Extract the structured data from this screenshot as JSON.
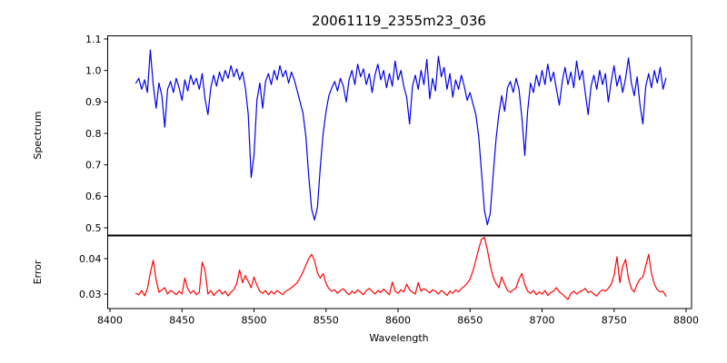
{
  "figure": {
    "background": "#ffffff",
    "spine_color": "#000000"
  },
  "chart_data": [
    {
      "type": "line",
      "title": "20061119_2355m23_036",
      "ylabel": "Spectrum",
      "xlabel": "",
      "grid": false,
      "legend": "none",
      "xlim": [
        8398.4,
        8803.8
      ],
      "ylim": [
        0.477,
        1.11
      ],
      "yticks": [
        0.5,
        0.6,
        0.7,
        0.8,
        0.9,
        1.0,
        1.1
      ],
      "ytick_labels": [
        "0.5",
        "0.6",
        "0.7",
        "0.8",
        "0.9",
        "1.0",
        "1.1"
      ],
      "series": [
        {
          "name": "spectrum",
          "color": "#0000ee",
          "x": [
            8418,
            8420,
            8422,
            8424,
            8426,
            8428,
            8430,
            8432,
            8434,
            8436,
            8438,
            8440,
            8442,
            8444,
            8446,
            8448,
            8450,
            8452,
            8454,
            8456,
            8458,
            8460,
            8462,
            8464,
            8466,
            8468,
            8470,
            8472,
            8474,
            8476,
            8478,
            8480,
            8482,
            8484,
            8486,
            8488,
            8490,
            8492,
            8494,
            8496,
            8498,
            8500,
            8502,
            8504,
            8506,
            8508,
            8510,
            8512,
            8514,
            8516,
            8518,
            8520,
            8522,
            8524,
            8526,
            8528,
            8530,
            8532,
            8534,
            8536,
            8538,
            8540,
            8542,
            8544,
            8546,
            8548,
            8550,
            8552,
            8554,
            8556,
            8558,
            8560,
            8562,
            8564,
            8566,
            8568,
            8570,
            8572,
            8574,
            8576,
            8578,
            8580,
            8582,
            8584,
            8586,
            8588,
            8590,
            8592,
            8594,
            8596,
            8598,
            8600,
            8602,
            8604,
            8606,
            8608,
            8610,
            8612,
            8614,
            8616,
            8618,
            8620,
            8622,
            8624,
            8626,
            8628,
            8630,
            8632,
            8634,
            8636,
            8638,
            8640,
            8642,
            8644,
            8646,
            8648,
            8650,
            8652,
            8654,
            8656,
            8658,
            8660,
            8662,
            8664,
            8666,
            8668,
            8670,
            8672,
            8674,
            8676,
            8678,
            8680,
            8682,
            8684,
            8686,
            8688,
            8690,
            8692,
            8694,
            8696,
            8698,
            8700,
            8702,
            8704,
            8706,
            8708,
            8710,
            8712,
            8714,
            8716,
            8718,
            8720,
            8722,
            8724,
            8726,
            8728,
            8730,
            8732,
            8734,
            8736,
            8738,
            8740,
            8742,
            8744,
            8746,
            8748,
            8750,
            8752,
            8754,
            8756,
            8758,
            8760,
            8762,
            8764,
            8766,
            8768,
            8770,
            8772,
            8774,
            8776,
            8778,
            8780,
            8782,
            8784,
            8786
          ],
          "y": [
            0.96,
            0.975,
            0.94,
            0.97,
            0.93,
            1.065,
            0.955,
            0.88,
            0.96,
            0.92,
            0.82,
            0.94,
            0.965,
            0.93,
            0.975,
            0.945,
            0.905,
            0.97,
            0.935,
            0.985,
            0.955,
            0.975,
            0.94,
            0.99,
            0.91,
            0.86,
            0.945,
            0.985,
            0.95,
            0.995,
            0.965,
            1.0,
            0.975,
            1.015,
            0.98,
            1.005,
            0.97,
            0.995,
            0.945,
            0.86,
            0.66,
            0.73,
            0.905,
            0.96,
            0.88,
            0.965,
            0.99,
            0.955,
            1.0,
            0.97,
            1.015,
            0.98,
            1.0,
            0.96,
            0.995,
            0.97,
            0.935,
            0.9,
            0.865,
            0.79,
            0.665,
            0.56,
            0.525,
            0.565,
            0.69,
            0.8,
            0.87,
            0.92,
            0.945,
            0.965,
            0.935,
            0.975,
            0.95,
            0.9,
            0.97,
            1.0,
            0.955,
            1.02,
            0.98,
            1.005,
            0.955,
            0.99,
            0.93,
            0.985,
            1.02,
            0.97,
            1.0,
            0.945,
            0.99,
            0.95,
            1.03,
            0.97,
            1.0,
            0.95,
            0.915,
            0.83,
            0.95,
            0.985,
            0.94,
            1.0,
            0.955,
            1.035,
            0.91,
            0.975,
            0.935,
            1.045,
            0.98,
            1.01,
            0.94,
            0.99,
            0.915,
            0.97,
            0.94,
            0.985,
            0.95,
            0.905,
            0.93,
            0.895,
            0.86,
            0.79,
            0.675,
            0.555,
            0.51,
            0.545,
            0.665,
            0.78,
            0.86,
            0.92,
            0.87,
            0.945,
            0.965,
            0.93,
            0.975,
            0.94,
            0.85,
            0.73,
            0.87,
            0.96,
            0.93,
            0.985,
            0.95,
            1.0,
            0.955,
            1.02,
            0.965,
            0.995,
            0.94,
            0.89,
            0.965,
            1.01,
            0.955,
            0.995,
            0.945,
            1.03,
            0.97,
            1.0,
            0.93,
            0.86,
            0.95,
            0.985,
            0.94,
            1.0,
            0.955,
            0.99,
            0.9,
            0.965,
            1.015,
            0.95,
            0.985,
            0.93,
            0.975,
            1.04,
            0.96,
            0.92,
            0.98,
            0.89,
            0.83,
            0.95,
            0.99,
            0.945,
            1.0,
            0.96,
            1.01,
            0.94,
            0.975
          ]
        }
      ]
    },
    {
      "type": "line",
      "title": "",
      "ylabel": "Error",
      "xlabel": "Wavelength",
      "grid": false,
      "legend": "none",
      "xlim": [
        8398.4,
        8803.8
      ],
      "ylim": [
        0.0259,
        0.0464
      ],
      "yticks": [
        0.03,
        0.04
      ],
      "ytick_labels": [
        "0.03",
        "0.04"
      ],
      "xticks": [
        8400,
        8450,
        8500,
        8550,
        8600,
        8650,
        8700,
        8750,
        8800
      ],
      "xtick_labels": [
        "8400",
        "8450",
        "8500",
        "8550",
        "8600",
        "8650",
        "8700",
        "8750",
        "8800"
      ],
      "series": [
        {
          "name": "error",
          "color": "#ff0000",
          "x": [
            8418,
            8420,
            8422,
            8424,
            8426,
            8428,
            8430,
            8432,
            8434,
            8436,
            8438,
            8440,
            8442,
            8444,
            8446,
            8448,
            8450,
            8452,
            8454,
            8456,
            8458,
            8460,
            8462,
            8464,
            8466,
            8468,
            8470,
            8472,
            8474,
            8476,
            8478,
            8480,
            8482,
            8484,
            8486,
            8488,
            8490,
            8492,
            8494,
            8496,
            8498,
            8500,
            8502,
            8504,
            8506,
            8508,
            8510,
            8512,
            8514,
            8516,
            8518,
            8520,
            8522,
            8524,
            8526,
            8528,
            8530,
            8532,
            8534,
            8536,
            8538,
            8540,
            8542,
            8544,
            8546,
            8548,
            8550,
            8552,
            8554,
            8556,
            8558,
            8560,
            8562,
            8564,
            8566,
            8568,
            8570,
            8572,
            8574,
            8576,
            8578,
            8580,
            8582,
            8584,
            8586,
            8588,
            8590,
            8592,
            8594,
            8596,
            8598,
            8600,
            8602,
            8604,
            8606,
            8608,
            8610,
            8612,
            8614,
            8616,
            8618,
            8620,
            8622,
            8624,
            8626,
            8628,
            8630,
            8632,
            8634,
            8636,
            8638,
            8640,
            8642,
            8644,
            8646,
            8648,
            8650,
            8652,
            8654,
            8656,
            8658,
            8660,
            8662,
            8664,
            8666,
            8668,
            8670,
            8672,
            8674,
            8676,
            8678,
            8680,
            8682,
            8684,
            8686,
            8688,
            8690,
            8692,
            8694,
            8696,
            8698,
            8700,
            8702,
            8704,
            8706,
            8708,
            8710,
            8712,
            8714,
            8716,
            8718,
            8720,
            8722,
            8724,
            8726,
            8728,
            8730,
            8732,
            8734,
            8736,
            8738,
            8740,
            8742,
            8744,
            8746,
            8748,
            8750,
            8752,
            8754,
            8756,
            8758,
            8760,
            8762,
            8764,
            8766,
            8768,
            8770,
            8772,
            8774,
            8776,
            8778,
            8780,
            8782,
            8784,
            8786
          ],
          "y": [
            0.0302,
            0.0298,
            0.031,
            0.0295,
            0.0315,
            0.036,
            0.0395,
            0.034,
            0.0305,
            0.0312,
            0.0318,
            0.03,
            0.031,
            0.0305,
            0.0298,
            0.0308,
            0.03,
            0.0345,
            0.0315,
            0.0302,
            0.031,
            0.0298,
            0.0305,
            0.039,
            0.0368,
            0.03,
            0.031,
            0.0296,
            0.0305,
            0.0312,
            0.03,
            0.0308,
            0.0295,
            0.0305,
            0.0312,
            0.033,
            0.0368,
            0.0332,
            0.0352,
            0.0335,
            0.0318,
            0.0348,
            0.0325,
            0.0308,
            0.0302,
            0.031,
            0.0298,
            0.0308,
            0.03,
            0.031,
            0.0304,
            0.0298,
            0.0308,
            0.0312,
            0.0318,
            0.0325,
            0.0332,
            0.0346,
            0.0362,
            0.0382,
            0.04,
            0.0412,
            0.0395,
            0.036,
            0.0345,
            0.0358,
            0.033,
            0.0315,
            0.0308,
            0.0312,
            0.0302,
            0.031,
            0.0315,
            0.0305,
            0.0298,
            0.0308,
            0.0302,
            0.0312,
            0.0305,
            0.0298,
            0.031,
            0.0316,
            0.0308,
            0.03,
            0.031,
            0.0304,
            0.0314,
            0.0306,
            0.0298,
            0.0334,
            0.0308,
            0.0302,
            0.0312,
            0.0306,
            0.0328,
            0.0312,
            0.0305,
            0.03,
            0.0332,
            0.0308,
            0.0315,
            0.031,
            0.0303,
            0.0312,
            0.0308,
            0.03,
            0.031,
            0.0304,
            0.0296,
            0.0308,
            0.0302,
            0.0312,
            0.0306,
            0.0315,
            0.0322,
            0.033,
            0.0342,
            0.0365,
            0.0395,
            0.0428,
            0.0455,
            0.046,
            0.0425,
            0.0382,
            0.0348,
            0.033,
            0.0318,
            0.0348,
            0.0328,
            0.031,
            0.0305,
            0.0312,
            0.0318,
            0.0342,
            0.0358,
            0.0328,
            0.0308,
            0.0302,
            0.031,
            0.0298,
            0.0306,
            0.03,
            0.031,
            0.0296,
            0.0304,
            0.0308,
            0.0318,
            0.0306,
            0.03,
            0.0292,
            0.0285,
            0.0302,
            0.0308,
            0.03,
            0.0306,
            0.031,
            0.0316,
            0.0304,
            0.0308,
            0.03,
            0.0294,
            0.0306,
            0.0312,
            0.0308,
            0.0316,
            0.0328,
            0.0352,
            0.0405,
            0.0332,
            0.0378,
            0.0398,
            0.0344,
            0.0315,
            0.0306,
            0.0328,
            0.0342,
            0.0348,
            0.038,
            0.0412,
            0.0358,
            0.0328,
            0.0312,
            0.0306,
            0.0308,
            0.0294
          ]
        }
      ]
    }
  ]
}
